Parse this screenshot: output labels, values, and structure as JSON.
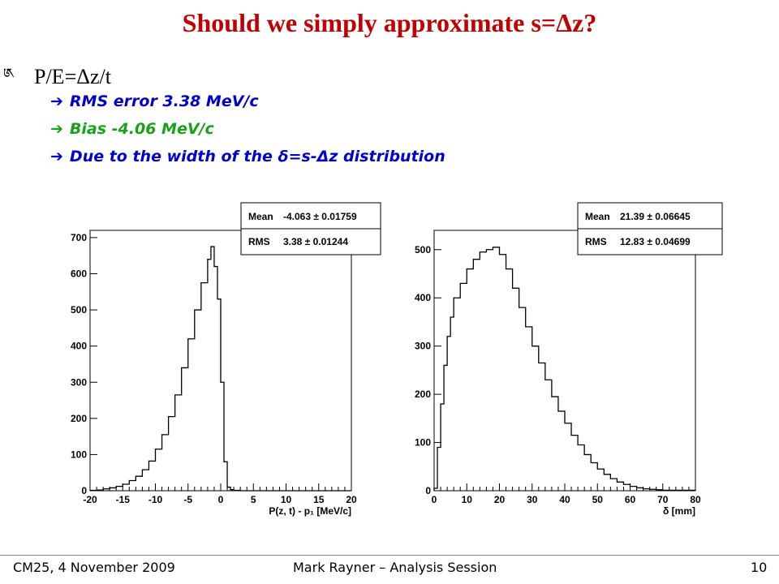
{
  "slide": {
    "title": "Should we simply approximate s=Δz?",
    "bullet_marker": "༁",
    "main_bullet": "P/E=Δz/t",
    "sub_arrow": "➔",
    "sub_bullets": [
      "RMS error 3.38 MeV/c",
      "Bias -4.06 MeV/c",
      "Due to the width of the δ=s-Δz distribution"
    ],
    "colors": {
      "title": "#c00000",
      "blue": "#0000cc",
      "green": "#1aa01a"
    }
  },
  "footer": {
    "left": "CM25, 4 November 2009",
    "center": "Mark Rayner – Analysis Session",
    "page": "10"
  },
  "chart_data": [
    {
      "type": "histogram",
      "xlabel": "P(z, t) - p₁ [MeV/c]",
      "xlim": [
        -20,
        20
      ],
      "ylim": [
        0,
        720
      ],
      "xticks": [
        -20,
        -15,
        -10,
        -5,
        0,
        5,
        10,
        15,
        20
      ],
      "yticks": [
        0,
        100,
        200,
        300,
        400,
        500,
        600,
        700
      ],
      "stats": [
        {
          "label": "Mean",
          "value": "-4.063 ± 0.01759"
        },
        {
          "label": "RMS",
          "value": "3.38 ± 0.01244"
        }
      ],
      "bins": [
        [
          -20,
          1
        ],
        [
          -19,
          2
        ],
        [
          -18,
          5
        ],
        [
          -17,
          8
        ],
        [
          -16,
          12
        ],
        [
          -15,
          18
        ],
        [
          -14,
          28
        ],
        [
          -13,
          40
        ],
        [
          -12,
          58
        ],
        [
          -11,
          82
        ],
        [
          -10,
          115
        ],
        [
          -9,
          155
        ],
        [
          -8,
          205
        ],
        [
          -7,
          265
        ],
        [
          -6,
          340
        ],
        [
          -5,
          420
        ],
        [
          -4,
          500
        ],
        [
          -3,
          575
        ],
        [
          -2,
          640
        ],
        [
          -1.5,
          675
        ],
        [
          -1,
          620
        ],
        [
          -0.5,
          530
        ],
        [
          0,
          300
        ],
        [
          0.5,
          80
        ],
        [
          1,
          10
        ],
        [
          1.5,
          3
        ],
        [
          2,
          1
        ],
        [
          3,
          0
        ],
        [
          20,
          0
        ]
      ]
    },
    {
      "type": "histogram",
      "xlabel": "δ [mm]",
      "xlim": [
        0,
        80
      ],
      "ylim": [
        0,
        540
      ],
      "xticks": [
        0,
        10,
        20,
        30,
        40,
        50,
        60,
        70,
        80
      ],
      "yticks": [
        0,
        100,
        200,
        300,
        400,
        500
      ],
      "stats": [
        {
          "label": "Mean",
          "value": "21.39 ± 0.06645"
        },
        {
          "label": "RMS",
          "value": "12.83 ± 0.04699"
        }
      ],
      "bins": [
        [
          0,
          5
        ],
        [
          1,
          90
        ],
        [
          2,
          180
        ],
        [
          3,
          260
        ],
        [
          4,
          320
        ],
        [
          5,
          360
        ],
        [
          6,
          400
        ],
        [
          8,
          430
        ],
        [
          10,
          460
        ],
        [
          12,
          480
        ],
        [
          14,
          495
        ],
        [
          16,
          500
        ],
        [
          18,
          505
        ],
        [
          20,
          490
        ],
        [
          22,
          460
        ],
        [
          24,
          420
        ],
        [
          26,
          380
        ],
        [
          28,
          340
        ],
        [
          30,
          300
        ],
        [
          32,
          265
        ],
        [
          34,
          230
        ],
        [
          36,
          195
        ],
        [
          38,
          165
        ],
        [
          40,
          140
        ],
        [
          42,
          115
        ],
        [
          44,
          95
        ],
        [
          46,
          75
        ],
        [
          48,
          58
        ],
        [
          50,
          45
        ],
        [
          52,
          34
        ],
        [
          54,
          25
        ],
        [
          56,
          18
        ],
        [
          58,
          13
        ],
        [
          60,
          9
        ],
        [
          62,
          6
        ],
        [
          64,
          4
        ],
        [
          66,
          3
        ],
        [
          68,
          2
        ],
        [
          70,
          1
        ],
        [
          74,
          1
        ],
        [
          80,
          0
        ]
      ]
    }
  ]
}
